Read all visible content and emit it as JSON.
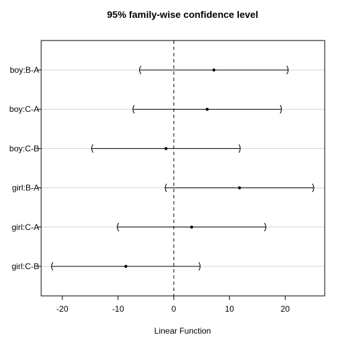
{
  "chart_data": {
    "type": "interval",
    "title": "95% family-wise confidence level",
    "xlabel": "Linear Function",
    "ylabel": "",
    "xlim": [
      -23.8,
      27.1
    ],
    "x_ticks": [
      -20,
      -10,
      0,
      10,
      20
    ],
    "x_tick_labels": [
      "-20",
      "-10",
      "0",
      "10",
      "20"
    ],
    "reference_line": 0,
    "grid": "horizontal",
    "categories": [
      "boy:B-A",
      "boy:C-A",
      "boy:C-B",
      "girl:B-A",
      "girl:C-A",
      "girl:C-B"
    ],
    "estimates": [
      7.2,
      6.0,
      -1.4,
      11.8,
      3.2,
      -8.6
    ],
    "lower": [
      -6.2,
      -7.4,
      -14.8,
      -1.6,
      -10.2,
      -22.0
    ],
    "upper": [
      20.6,
      19.4,
      12.0,
      25.2,
      16.6,
      4.8
    ],
    "colors": {
      "line": "#000000",
      "grid": "#d3d3d3"
    }
  }
}
